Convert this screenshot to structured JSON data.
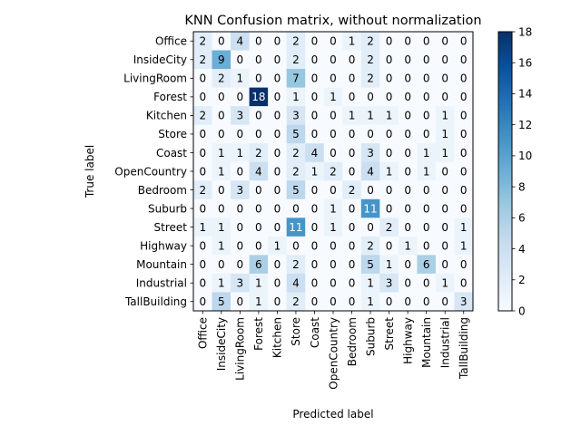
{
  "chart_data": {
    "type": "heatmap",
    "title": "KNN Confusion matrix, without normalization",
    "xlabel": "Predicted label",
    "ylabel": "True label",
    "categories": [
      "Office",
      "InsideCity",
      "LivingRoom",
      "Forest",
      "Kitchen",
      "Store",
      "Coast",
      "OpenCountry",
      "Bedroom",
      "Suburb",
      "Street",
      "Highway",
      "Mountain",
      "Industrial",
      "TallBuilding"
    ],
    "matrix": [
      [
        2,
        0,
        4,
        0,
        0,
        2,
        0,
        0,
        1,
        2,
        0,
        0,
        0,
        0,
        0
      ],
      [
        2,
        9,
        0,
        0,
        0,
        2,
        0,
        0,
        0,
        2,
        0,
        0,
        0,
        0,
        0
      ],
      [
        0,
        2,
        1,
        0,
        0,
        7,
        0,
        0,
        0,
        2,
        0,
        0,
        0,
        0,
        0
      ],
      [
        0,
        0,
        0,
        18,
        0,
        1,
        0,
        1,
        0,
        0,
        0,
        0,
        0,
        0,
        0
      ],
      [
        2,
        0,
        3,
        0,
        0,
        3,
        0,
        0,
        1,
        1,
        1,
        0,
        0,
        1,
        0
      ],
      [
        0,
        0,
        0,
        0,
        0,
        5,
        0,
        0,
        0,
        0,
        0,
        0,
        0,
        1,
        0
      ],
      [
        0,
        1,
        1,
        2,
        0,
        2,
        4,
        0,
        0,
        3,
        0,
        0,
        1,
        1,
        0
      ],
      [
        0,
        1,
        0,
        4,
        0,
        2,
        1,
        2,
        0,
        4,
        1,
        0,
        1,
        0,
        0
      ],
      [
        2,
        0,
        3,
        0,
        0,
        5,
        0,
        0,
        2,
        0,
        0,
        0,
        0,
        0,
        0
      ],
      [
        0,
        0,
        0,
        0,
        0,
        0,
        0,
        1,
        0,
        11,
        0,
        0,
        0,
        0,
        0
      ],
      [
        1,
        1,
        0,
        0,
        0,
        11,
        0,
        1,
        0,
        0,
        2,
        0,
        0,
        0,
        1
      ],
      [
        0,
        1,
        0,
        0,
        1,
        0,
        0,
        0,
        0,
        2,
        0,
        1,
        0,
        0,
        1
      ],
      [
        0,
        0,
        0,
        6,
        0,
        2,
        0,
        0,
        0,
        5,
        1,
        0,
        6,
        0,
        0
      ],
      [
        0,
        1,
        3,
        1,
        0,
        4,
        0,
        0,
        0,
        1,
        3,
        0,
        0,
        1,
        0
      ],
      [
        0,
        5,
        0,
        1,
        0,
        2,
        0,
        0,
        0,
        1,
        0,
        0,
        0,
        0,
        3
      ]
    ],
    "colorbar": {
      "colormap": "Blues",
      "range": [
        0,
        18
      ],
      "ticks": [
        0,
        2,
        4,
        6,
        8,
        10,
        12,
        14,
        16,
        18
      ]
    }
  }
}
